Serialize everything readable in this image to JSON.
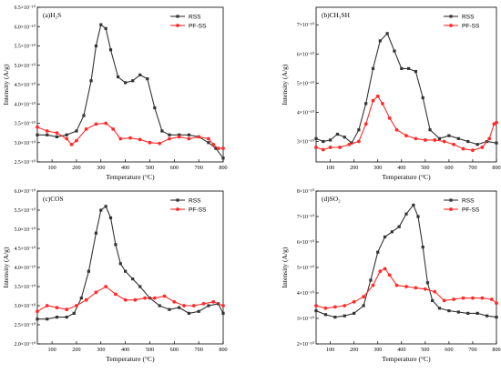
{
  "colors": {
    "RSS": "#333333",
    "PF-SS": "#ff2a2a"
  },
  "chart_data": [
    {
      "type": "line",
      "panel_label": "(a)H₂S",
      "xlabel": "Temperature (°C)",
      "ylabel": "Intensity (A/g)",
      "xlim": [
        40,
        800
      ],
      "ylim": [
        2.5e-10,
        6.5e-10
      ],
      "xticks": [
        100,
        200,
        300,
        400,
        500,
        600,
        700,
        800
      ],
      "yticks": [
        2.5e-10,
        3e-10,
        3.5e-10,
        4e-10,
        4.5e-10,
        5e-10,
        5.5e-10,
        6e-10,
        6.5e-10
      ],
      "ytick_labels": [
        "2.5×10⁻¹⁰",
        "3.0×10⁻¹⁰",
        "3.5×10⁻¹⁰",
        "4.0×10⁻¹⁰",
        "4.5×10⁻¹⁰",
        "5.0×10⁻¹⁰",
        "5.5×10⁻¹⁰",
        "6.0×10⁻¹⁰",
        "6.5×10⁻¹⁰"
      ],
      "legend": [
        "RSS",
        "PF-SS"
      ],
      "series": [
        {
          "name": "RSS",
          "marker": "square",
          "x": [
            40,
            80,
            120,
            160,
            200,
            230,
            260,
            280,
            300,
            320,
            340,
            370,
            400,
            430,
            460,
            490,
            520,
            550,
            580,
            620,
            660,
            700,
            740,
            770,
            800
          ],
          "y": [
            3.2e-10,
            3.2e-10,
            3.15e-10,
            3.2e-10,
            3.3e-10,
            3.7e-10,
            4.6e-10,
            5.5e-10,
            6.05e-10,
            5.95e-10,
            5.4e-10,
            4.7e-10,
            4.55e-10,
            4.6e-10,
            4.75e-10,
            4.65e-10,
            3.9e-10,
            3.3e-10,
            3.2e-10,
            3.2e-10,
            3.2e-10,
            3.15e-10,
            3e-10,
            2.85e-10,
            2.6e-10
          ]
        },
        {
          "name": "PF-SS",
          "marker": "circle",
          "x": [
            40,
            80,
            120,
            160,
            180,
            200,
            240,
            280,
            320,
            350,
            380,
            420,
            460,
            500,
            540,
            580,
            620,
            660,
            700,
            740,
            760,
            780,
            800
          ],
          "y": [
            3.4e-10,
            3.3e-10,
            3.25e-10,
            3.1e-10,
            2.95e-10,
            3.05e-10,
            3.35e-10,
            3.48e-10,
            3.5e-10,
            3.35e-10,
            3.1e-10,
            3.12e-10,
            3.08e-10,
            3e-10,
            2.98e-10,
            3.1e-10,
            3.15e-10,
            3.1e-10,
            3.15e-10,
            3.1e-10,
            2.95e-10,
            2.85e-10,
            2.85e-10
          ]
        }
      ]
    },
    {
      "type": "line",
      "panel_label": "(b)CH₃SH",
      "xlabel": "Temperature (°C)",
      "ylabel": "Intensity (A/g)",
      "xlim": [
        40,
        800
      ],
      "ylim": [
        2.3e-10,
        7.6e-10
      ],
      "xticks": [
        100,
        200,
        300,
        400,
        500,
        600,
        700,
        800
      ],
      "yticks": [
        3e-10,
        4e-10,
        5e-10,
        6e-10,
        7e-10
      ],
      "ytick_labels": [
        "3×10⁻¹⁰",
        "4×10⁻¹⁰",
        "5×10⁻¹⁰",
        "6×10⁻¹⁰",
        "7×10⁻¹⁰"
      ],
      "legend": [
        "RSS",
        "PF-SS"
      ],
      "series": [
        {
          "name": "RSS",
          "marker": "square",
          "x": [
            40,
            70,
            100,
            130,
            160,
            190,
            220,
            250,
            280,
            310,
            340,
            370,
            400,
            430,
            460,
            490,
            520,
            560,
            600,
            640,
            680,
            720,
            760,
            800
          ],
          "y": [
            3.1e-10,
            3e-10,
            3.05e-10,
            3.25e-10,
            3.15e-10,
            2.95e-10,
            3.4e-10,
            4.3e-10,
            5.5e-10,
            6.45e-10,
            6.7e-10,
            6.1e-10,
            5.5e-10,
            5.5e-10,
            5.4e-10,
            4.5e-10,
            3.4e-10,
            3.1e-10,
            3.2e-10,
            3.1e-10,
            3e-10,
            2.9e-10,
            3e-10,
            2.95e-10
          ]
        },
        {
          "name": "PF-SS",
          "marker": "circle",
          "x": [
            40,
            70,
            100,
            140,
            180,
            220,
            250,
            280,
            300,
            320,
            350,
            380,
            420,
            460,
            500,
            540,
            580,
            620,
            660,
            700,
            740,
            770,
            790,
            800
          ],
          "y": [
            2.8e-10,
            2.72e-10,
            2.8e-10,
            2.8e-10,
            2.9e-10,
            3e-10,
            3.6e-10,
            4.4e-10,
            4.55e-10,
            4.3e-10,
            3.8e-10,
            3.4e-10,
            3.2e-10,
            3.1e-10,
            3.05e-10,
            3.05e-10,
            3e-10,
            2.9e-10,
            2.75e-10,
            2.7e-10,
            2.8e-10,
            3.1e-10,
            3.6e-10,
            3.65e-10
          ]
        }
      ]
    },
    {
      "type": "line",
      "panel_label": "(c)COS",
      "xlabel": "Temperature (°C)",
      "ylabel": "Intensity (A/g)",
      "xlim": [
        40,
        800
      ],
      "ylim": [
        2e-10,
        6e-10
      ],
      "xticks": [
        100,
        200,
        300,
        400,
        500,
        600,
        700,
        800
      ],
      "yticks": [
        2e-10,
        2.5e-10,
        3e-10,
        3.5e-10,
        4e-10,
        4.5e-10,
        5e-10,
        5.5e-10,
        6e-10
      ],
      "ytick_labels": [
        "2.0×10⁻¹⁰",
        "2.5×10⁻¹⁰",
        "3.0×10⁻¹⁰",
        "3.5×10⁻¹⁰",
        "4.0×10⁻¹⁰",
        "4.5×10⁻¹⁰",
        "5.0×10⁻¹⁰",
        "5.5×10⁻¹⁰",
        "6.0×10⁻¹⁰"
      ],
      "legend": [
        "RSS",
        "PF-SS"
      ],
      "series": [
        {
          "name": "RSS",
          "marker": "square",
          "x": [
            40,
            80,
            120,
            160,
            190,
            220,
            250,
            280,
            300,
            320,
            340,
            360,
            380,
            400,
            430,
            460,
            500,
            540,
            580,
            620,
            660,
            700,
            740,
            780,
            800
          ],
          "y": [
            2.65e-10,
            2.65e-10,
            2.7e-10,
            2.7e-10,
            2.8e-10,
            3.2e-10,
            3.9e-10,
            4.9e-10,
            5.5e-10,
            5.6e-10,
            5.3e-10,
            4.6e-10,
            4.1e-10,
            3.9e-10,
            3.7e-10,
            3.5e-10,
            3.2e-10,
            3e-10,
            2.9e-10,
            2.95e-10,
            2.8e-10,
            2.85e-10,
            3e-10,
            3.05e-10,
            2.8e-10
          ]
        },
        {
          "name": "PF-SS",
          "marker": "circle",
          "x": [
            40,
            80,
            120,
            160,
            200,
            240,
            280,
            320,
            360,
            400,
            440,
            480,
            520,
            560,
            600,
            640,
            680,
            720,
            760,
            800
          ],
          "y": [
            2.85e-10,
            3e-10,
            2.95e-10,
            2.9e-10,
            3e-10,
            3.15e-10,
            3.35e-10,
            3.5e-10,
            3.3e-10,
            3.15e-10,
            3.15e-10,
            3.2e-10,
            3.2e-10,
            3.25e-10,
            3.1e-10,
            3e-10,
            3e-10,
            3.05e-10,
            3.1e-10,
            3e-10
          ]
        }
      ]
    },
    {
      "type": "line",
      "panel_label": "(d)SO₂",
      "xlabel": "Temperature (°C)",
      "ylabel": "Intensity (A/g)",
      "xlim": [
        40,
        800
      ],
      "ylim": [
        2e-10,
        8e-10
      ],
      "xticks": [
        100,
        200,
        300,
        400,
        500,
        600,
        700,
        800
      ],
      "yticks": [
        2e-10,
        3e-10,
        4e-10,
        5e-10,
        6e-10,
        7e-10,
        8e-10
      ],
      "ytick_labels": [
        "2×10⁻¹⁰",
        "3×10⁻¹⁰",
        "4×10⁻¹⁰",
        "5×10⁻¹⁰",
        "6×10⁻¹⁰",
        "7×10⁻¹⁰",
        "8×10⁻¹⁰"
      ],
      "legend": [
        "RSS",
        "PF-SS"
      ],
      "series": [
        {
          "name": "RSS",
          "marker": "square",
          "x": [
            40,
            80,
            120,
            160,
            200,
            240,
            270,
            300,
            330,
            360,
            390,
            420,
            450,
            470,
            490,
            510,
            530,
            560,
            600,
            640,
            680,
            720,
            760,
            800
          ],
          "y": [
            3.3e-10,
            3.15e-10,
            3.05e-10,
            3.1e-10,
            3.2e-10,
            3.5e-10,
            4.5e-10,
            5.6e-10,
            6.2e-10,
            6.4e-10,
            6.6e-10,
            7.1e-10,
            7.45e-10,
            7e-10,
            5.8e-10,
            4.4e-10,
            3.7e-10,
            3.4e-10,
            3.3e-10,
            3.25e-10,
            3.2e-10,
            3.2e-10,
            3.1e-10,
            3.05e-10
          ]
        },
        {
          "name": "PF-SS",
          "marker": "circle",
          "x": [
            40,
            80,
            120,
            160,
            200,
            240,
            280,
            310,
            330,
            350,
            380,
            420,
            460,
            500,
            540,
            580,
            620,
            660,
            700,
            740,
            780,
            800
          ],
          "y": [
            3.5e-10,
            3.4e-10,
            3.45e-10,
            3.5e-10,
            3.65e-10,
            3.85e-10,
            4.3e-10,
            4.85e-10,
            4.95e-10,
            4.7e-10,
            4.3e-10,
            4.25e-10,
            4.2e-10,
            4.15e-10,
            4.05e-10,
            3.7e-10,
            3.75e-10,
            3.8e-10,
            3.8e-10,
            3.8e-10,
            3.75e-10,
            3.6e-10
          ]
        }
      ]
    }
  ]
}
